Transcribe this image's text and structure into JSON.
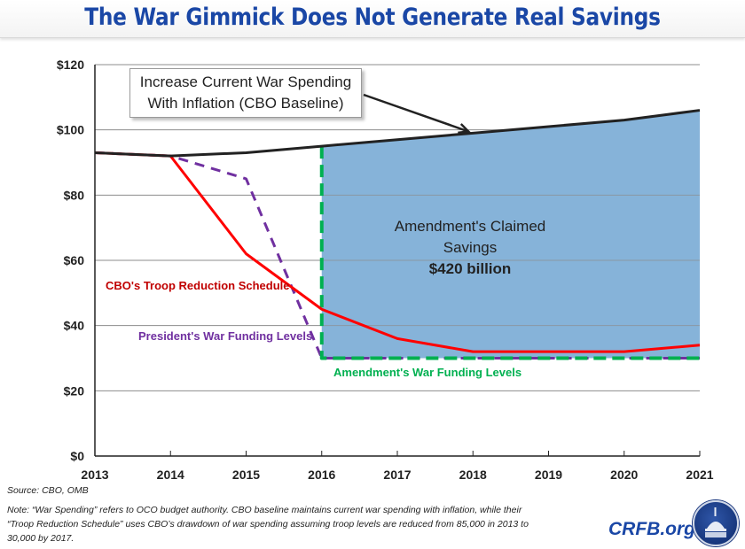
{
  "header": {
    "title": "The War Gimmick Does Not Generate Real Savings"
  },
  "chart_data": {
    "type": "line",
    "title": "The War Gimmick Does Not Generate Real Savings",
    "xlabel": "",
    "ylabel": "",
    "x": [
      2013,
      2014,
      2015,
      2016,
      2017,
      2018,
      2019,
      2020,
      2021
    ],
    "x_tick_labels": [
      "2013",
      "2014",
      "2015",
      "2016",
      "2017",
      "2018",
      "2019",
      "2020",
      "2021"
    ],
    "ylim": [
      0,
      120
    ],
    "y_ticks": [
      0,
      20,
      40,
      60,
      80,
      100,
      120
    ],
    "y_tick_labels": [
      "$0",
      "$20",
      "$40",
      "$60",
      "$80",
      "$100",
      "$120"
    ],
    "grid": true,
    "series": [
      {
        "name": "Increase Current War Spending With Inflation (CBO Baseline)",
        "style": "solid",
        "color": "#222222",
        "x": [
          2013,
          2014,
          2015,
          2016,
          2017,
          2018,
          2019,
          2020,
          2021
        ],
        "values": [
          93,
          92,
          93,
          95,
          97,
          99,
          101,
          103,
          106
        ]
      },
      {
        "name": "CBO's Troop Reduction Schedule",
        "style": "solid",
        "color": "#ff0000",
        "x": [
          2013,
          2014,
          2015,
          2016,
          2017,
          2018,
          2019,
          2020,
          2021
        ],
        "values": [
          93,
          92,
          62,
          45,
          36,
          32,
          32,
          32,
          34
        ]
      },
      {
        "name": "President's War Funding Levels",
        "style": "dashed",
        "color": "#7030a0",
        "x": [
          2013,
          2014,
          2015,
          2016,
          2017,
          2018,
          2019,
          2020,
          2021
        ],
        "values": [
          93,
          92,
          85,
          30,
          30,
          30,
          30,
          30,
          30
        ]
      },
      {
        "name": "Amendment's War Funding Levels",
        "style": "dashed",
        "color": "#00b050",
        "x": [
          2016,
          2016,
          2017,
          2018,
          2019,
          2020,
          2021
        ],
        "values": [
          95,
          30,
          30,
          30,
          30,
          30,
          30
        ]
      }
    ],
    "shaded_area": {
      "name": "Amendment's Claimed Savings",
      "color": "#86b3d9",
      "x_range": [
        2016,
        2021
      ],
      "lower": 30,
      "upper_series": "Increase Current War Spending With Inflation (CBO Baseline)"
    },
    "annotations": {
      "callout_line1": "Increase Current War Spending",
      "callout_line2": "With Inflation (CBO Baseline)",
      "savings_label": "Amendment's Claimed Savings",
      "savings_amount": "$420 billion",
      "cbo_troop": "CBO's Troop Reduction Schedule",
      "president": "President's War Funding Levels",
      "amendment": "Amendment's War Funding Levels"
    }
  },
  "footer": {
    "source": "Source:  CBO, OMB",
    "note": "Note: “War Spending” refers to OCO budget authority. CBO baseline maintains current  war spending with inflation, while their “Troop Reduction Schedule” uses CBO’s drawdown of war spending assuming troop levels are reduced  from 85,000 in 2013 to 30,000 by 2017.",
    "brand": "CRFB.org"
  },
  "colors": {
    "title": "#1a47a6",
    "baseline": "#222222",
    "troop": "#ff0000",
    "president": "#7030a0",
    "amendment": "#00b050",
    "savings_fill": "#86b3d9"
  }
}
